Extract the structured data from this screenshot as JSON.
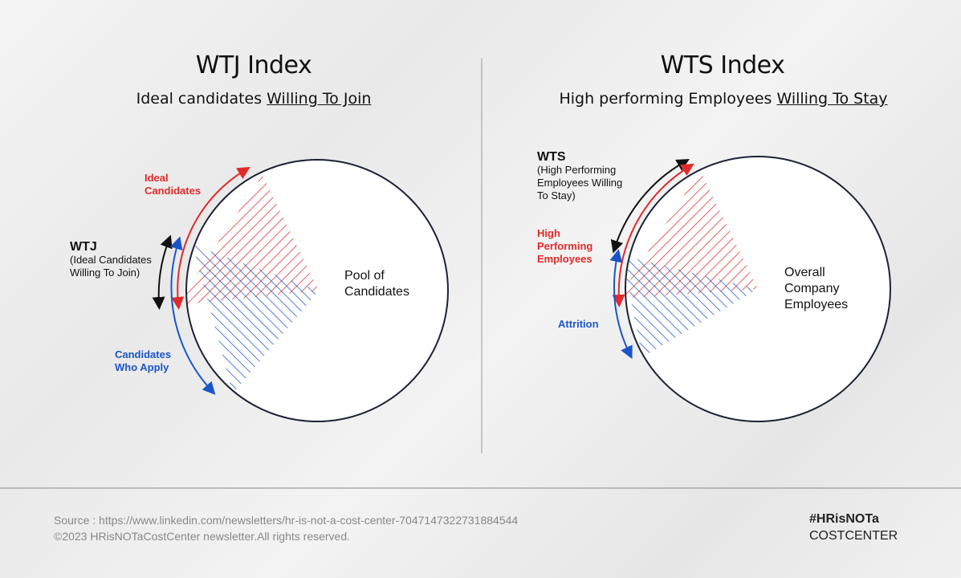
{
  "left": {
    "title": "WTJ Index",
    "subtitle_plain": "Ideal candidates ",
    "subtitle_underlined": "Willing To Join",
    "ideal_label": "Ideal Candidates",
    "wtj_label": "WTJ",
    "wtj_desc": "(Ideal Candidates Willing To Join)",
    "apply_label": "Candidates Who Apply",
    "circle_label": "Pool of Candidates"
  },
  "right": {
    "title": "WTS Index",
    "subtitle_plain": "High performing Employees ",
    "subtitle_underlined": "Willing To Stay",
    "wts_label": "WTS",
    "wts_desc": "(High Performing Employees Willing To Stay)",
    "high_label": "High Performing Employees",
    "attrition_label": "Attrition",
    "circle_label": "Overall Company Employees"
  },
  "footer": {
    "source": "Source : https://www.linkedin.com/newsletters/hr-is-not-a-cost-center-7047147322731884544",
    "copyright": "©2023 HRisNOTaCostCenter newsletter.All rights reserved.",
    "logo_line1": "#HRisNOTa",
    "logo_line2": "COSTCENTER"
  },
  "colors": {
    "red": "#e02b2b",
    "blue": "#1a55c8",
    "black": "#111111"
  }
}
